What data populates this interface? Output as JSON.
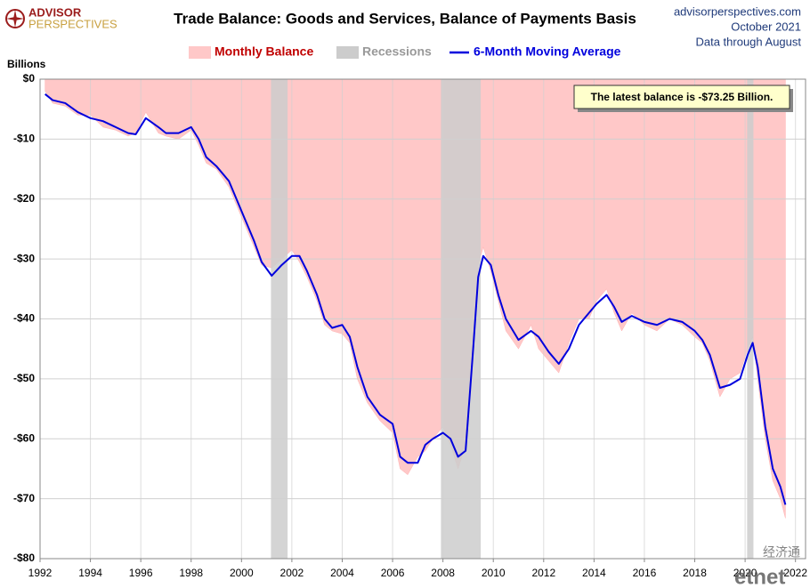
{
  "chart_data": {
    "type": "line",
    "title": "Trade Balance: Goods and Services, Balance of Payments Basis",
    "logo": [
      "ADVISOR",
      "PERSPECTIVES"
    ],
    "source": [
      "advisorperspectives.com",
      "October 2021",
      "Data through August"
    ],
    "y_label": "Billions",
    "annotation": "The latest balance is -$73.25 Billion.",
    "watermark": [
      "经济通",
      "etnet"
    ],
    "recession_label": "Recessions",
    "recession_color": "#cccccc",
    "recessions": [
      [
        2001.17,
        2001.83
      ],
      [
        2007.92,
        2009.5
      ],
      [
        2020.08,
        2020.33
      ]
    ],
    "x": [
      1992.2,
      1992.5,
      1993.0,
      1993.5,
      1994.0,
      1994.5,
      1995.0,
      1995.5,
      1995.8,
      1996.2,
      1996.7,
      1997.0,
      1997.5,
      1998.0,
      1998.3,
      1998.6,
      1999.0,
      1999.5,
      2000.0,
      2000.5,
      2000.8,
      2001.2,
      2001.6,
      2002.0,
      2002.3,
      2002.6,
      2003.0,
      2003.3,
      2003.6,
      2004.0,
      2004.3,
      2004.6,
      2005.0,
      2005.5,
      2006.0,
      2006.3,
      2006.6,
      2007.0,
      2007.3,
      2007.6,
      2008.0,
      2008.3,
      2008.6,
      2008.9,
      2009.2,
      2009.4,
      2009.6,
      2009.9,
      2010.2,
      2010.5,
      2011.0,
      2011.5,
      2011.8,
      2012.2,
      2012.6,
      2013.0,
      2013.4,
      2013.8,
      2014.1,
      2014.5,
      2014.8,
      2015.1,
      2015.5,
      2016.0,
      2016.5,
      2017.0,
      2017.5,
      2018.0,
      2018.3,
      2018.6,
      2019.0,
      2019.4,
      2019.8,
      2020.1,
      2020.3,
      2020.5,
      2020.8,
      2021.1,
      2021.4,
      2021.6
    ],
    "series": [
      {
        "name": "Monthly Balance",
        "color": "#ffc8c8",
        "legend_color": "#c00000",
        "kind": "area",
        "values": [
          -2,
          -4,
          -4.5,
          -6,
          -6,
          -8,
          -8.5,
          -9.5,
          -9,
          -5.5,
          -9,
          -9.5,
          -10,
          -8.5,
          -11,
          -14,
          -15,
          -18,
          -23,
          -28,
          -31,
          -31.5,
          -30,
          -28.5,
          -30.5,
          -33,
          -37,
          -41,
          -42,
          -42.5,
          -44,
          -50,
          -54,
          -57,
          -59,
          -65,
          -66,
          -63,
          -62,
          -60,
          -58,
          -61,
          -65,
          -61,
          -44,
          -31,
          -28,
          -32,
          -37,
          -42,
          -45,
          -41,
          -45,
          -47,
          -49,
          -44,
          -40,
          -40,
          -37,
          -35,
          -39,
          -42,
          -39,
          -41,
          -42,
          -40,
          -41,
          -43,
          -44,
          -47,
          -53,
          -50,
          -49,
          -45,
          -43,
          -50,
          -60,
          -67,
          -70,
          -73.25
        ]
      },
      {
        "name": "6-Month Moving Average",
        "color": "#0000dd",
        "legend_color": "#0000dd",
        "kind": "line",
        "values": [
          -2.5,
          -3.5,
          -4,
          -5.5,
          -6.5,
          -7,
          -8,
          -9,
          -9.2,
          -6.5,
          -8,
          -9,
          -9,
          -8,
          -10,
          -13,
          -14.5,
          -17,
          -22,
          -27,
          -30.5,
          -32.8,
          -31,
          -29.5,
          -29.5,
          -32,
          -36,
          -40,
          -41.5,
          -41,
          -43,
          -48,
          -53,
          -56,
          -57.5,
          -63,
          -64,
          -64,
          -61,
          -60,
          -59,
          -60,
          -63,
          -62,
          -45,
          -33,
          -29.5,
          -31,
          -36,
          -40,
          -43.5,
          -42,
          -43,
          -45.5,
          -47.5,
          -45,
          -41,
          -39,
          -37.5,
          -36,
          -38,
          -40.5,
          -39.5,
          -40.5,
          -41,
          -40,
          -40.5,
          -42,
          -43.5,
          -46,
          -51.5,
          -51,
          -50,
          -46,
          -44,
          -48,
          -58,
          -65,
          -68,
          -71
        ]
      }
    ],
    "xlim": [
      1992,
      2022.4
    ],
    "xticks": [
      1992,
      1994,
      1996,
      1998,
      2000,
      2002,
      2004,
      2006,
      2008,
      2010,
      2012,
      2014,
      2016,
      2018,
      2020,
      2022
    ],
    "ylim": [
      -80,
      0
    ],
    "yticks": [
      {
        "value": 0,
        "label": "$0"
      },
      {
        "value": -10,
        "label": "-$10"
      },
      {
        "value": -20,
        "label": "-$20"
      },
      {
        "value": -30,
        "label": "-$30"
      },
      {
        "value": -40,
        "label": "-$40"
      },
      {
        "value": -50,
        "label": "-$50"
      },
      {
        "value": -60,
        "label": "-$60"
      },
      {
        "value": -70,
        "label": "-$70"
      },
      {
        "value": -80,
        "label": "-$80"
      }
    ],
    "grid": true
  }
}
